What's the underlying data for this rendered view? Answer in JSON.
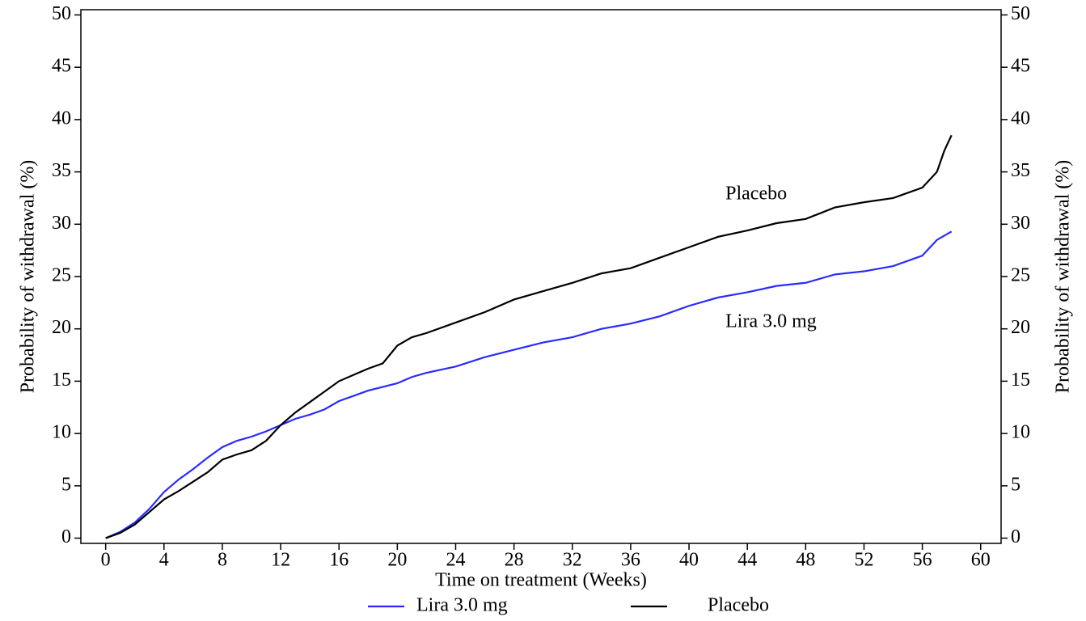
{
  "chart_data": {
    "type": "line",
    "x_label": "Time on treatment (Weeks)",
    "y_label": "Probability of withdrawal (%)",
    "y2_label": "Probability of withdrawal (%)",
    "xlim": [
      -1.7,
      61.4
    ],
    "xticks": [
      0,
      4,
      8,
      12,
      16,
      20,
      24,
      28,
      32,
      36,
      40,
      44,
      48,
      52,
      56,
      60
    ],
    "ylim": [
      -0.5,
      50.5
    ],
    "yticks": [
      0,
      5,
      10,
      15,
      20,
      25,
      30,
      35,
      40,
      45,
      50
    ],
    "y2lim": [
      -0.5,
      50.5
    ],
    "y2ticks": [
      0,
      5,
      10,
      15,
      20,
      25,
      30,
      35,
      40,
      45,
      50
    ],
    "grid": false,
    "legend": "bottom",
    "series": [
      {
        "name": "Lira 3.0 mg",
        "color": "#2a2aff",
        "x": [
          0,
          1,
          2,
          3,
          4,
          5,
          6,
          7,
          8,
          9,
          10,
          11,
          12,
          13,
          14,
          15,
          16,
          17,
          18,
          20,
          21,
          22,
          24,
          26,
          28,
          30,
          32,
          34,
          36,
          38,
          40,
          42,
          44,
          46,
          48,
          50,
          52,
          54,
          56,
          57,
          58
        ],
        "values": [
          0,
          0.6,
          1.5,
          2.8,
          4.4,
          5.6,
          6.6,
          7.7,
          8.7,
          9.3,
          9.7,
          10.2,
          10.8,
          11.4,
          11.8,
          12.3,
          13.1,
          13.6,
          14.1,
          14.8,
          15.4,
          15.8,
          16.4,
          17.3,
          18,
          18.7,
          19.2,
          20,
          20.5,
          21.2,
          22.2,
          23,
          23.5,
          24.1,
          24.4,
          25.2,
          25.5,
          26,
          27,
          28.5,
          29.3
        ]
      },
      {
        "name": "Placebo",
        "color": "#000000",
        "x": [
          0,
          1,
          2,
          3,
          4,
          5,
          6,
          7,
          8,
          9,
          10,
          11,
          12,
          13,
          14,
          15,
          16,
          17,
          18,
          19,
          20,
          21,
          22,
          24,
          26,
          28,
          30,
          32,
          34,
          36,
          38,
          40,
          42,
          44,
          46,
          48,
          50,
          52,
          54,
          56,
          57,
          57.5,
          58
        ],
        "values": [
          0,
          0.5,
          1.3,
          2.5,
          3.7,
          4.5,
          5.4,
          6.3,
          7.5,
          8,
          8.4,
          9.3,
          10.8,
          12,
          13,
          14,
          15,
          15.6,
          16.2,
          16.7,
          18.4,
          19.2,
          19.6,
          20.6,
          21.6,
          22.8,
          23.6,
          24.4,
          25.3,
          25.8,
          26.8,
          27.8,
          28.8,
          29.4,
          30.1,
          30.5,
          31.6,
          32.1,
          32.5,
          33.5,
          35,
          37,
          38.5
        ]
      }
    ],
    "annotations": [
      "Lira 3.0 mg",
      "Placebo"
    ]
  }
}
